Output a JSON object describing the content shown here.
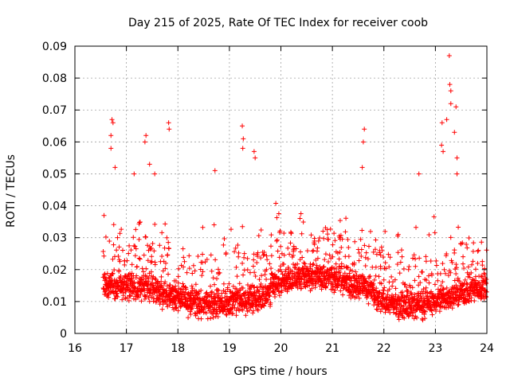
{
  "chart_data": {
    "type": "scatter",
    "title": "Day 215 of 2025, Rate Of TEC Index for receiver coob",
    "xlabel": "GPS time / hours",
    "ylabel": "ROTI / TECUs",
    "xlim": [
      16,
      24
    ],
    "ylim": [
      0,
      0.09
    ],
    "xticks": [
      16,
      17,
      18,
      19,
      20,
      21,
      22,
      23,
      24
    ],
    "xtick_labels": [
      "16",
      "17",
      "18",
      "19",
      "20",
      "21",
      "22",
      "23",
      "24"
    ],
    "yticks": [
      0,
      0.01,
      0.02,
      0.03,
      0.04,
      0.05,
      0.06,
      0.07,
      0.08,
      0.09
    ],
    "ytick_labels": [
      "0",
      "0.01",
      "0.02",
      "0.03",
      "0.04",
      "0.05",
      "0.06",
      "0.07",
      "0.08",
      "0.09"
    ],
    "grid": true,
    "marker": "+",
    "series": [
      {
        "name": "ROTI",
        "color": "#ff0000",
        "data_start_hour": 16.55,
        "data_end_hour": 24.0,
        "typical_range": [
          0.005,
          0.025
        ],
        "peaks": [
          {
            "x": 16.72,
            "y": 0.067
          },
          {
            "x": 16.74,
            "y": 0.066
          },
          {
            "x": 16.7,
            "y": 0.062
          },
          {
            "x": 16.7,
            "y": 0.058
          },
          {
            "x": 16.78,
            "y": 0.052
          },
          {
            "x": 17.15,
            "y": 0.05
          },
          {
            "x": 17.38,
            "y": 0.062
          },
          {
            "x": 17.36,
            "y": 0.06
          },
          {
            "x": 17.45,
            "y": 0.053
          },
          {
            "x": 17.55,
            "y": 0.05
          },
          {
            "x": 17.82,
            "y": 0.066
          },
          {
            "x": 17.83,
            "y": 0.064
          },
          {
            "x": 18.72,
            "y": 0.051
          },
          {
            "x": 19.25,
            "y": 0.065
          },
          {
            "x": 19.27,
            "y": 0.061
          },
          {
            "x": 19.26,
            "y": 0.058
          },
          {
            "x": 19.48,
            "y": 0.057
          },
          {
            "x": 19.5,
            "y": 0.055
          },
          {
            "x": 21.62,
            "y": 0.064
          },
          {
            "x": 21.6,
            "y": 0.06
          },
          {
            "x": 21.58,
            "y": 0.052
          },
          {
            "x": 22.68,
            "y": 0.05
          },
          {
            "x": 23.27,
            "y": 0.087
          },
          {
            "x": 23.28,
            "y": 0.078
          },
          {
            "x": 23.3,
            "y": 0.076
          },
          {
            "x": 23.3,
            "y": 0.072
          },
          {
            "x": 23.4,
            "y": 0.071
          },
          {
            "x": 23.13,
            "y": 0.066
          },
          {
            "x": 23.22,
            "y": 0.067
          },
          {
            "x": 23.37,
            "y": 0.063
          },
          {
            "x": 23.12,
            "y": 0.059
          },
          {
            "x": 23.15,
            "y": 0.057
          },
          {
            "x": 23.42,
            "y": 0.055
          },
          {
            "x": 23.42,
            "y": 0.05
          }
        ]
      }
    ]
  }
}
